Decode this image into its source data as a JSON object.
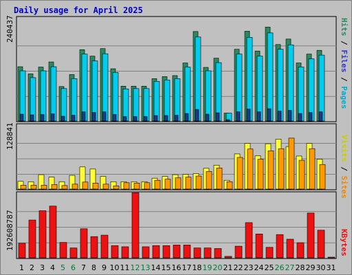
{
  "chart_data": {
    "type": "bar",
    "title": "Daily usage for April 2025",
    "categories": [
      "1",
      "2",
      "3",
      "4",
      "5",
      "6",
      "7",
      "8",
      "9",
      "10",
      "11",
      "12",
      "13",
      "14",
      "15",
      "16",
      "17",
      "18",
      "19",
      "20",
      "21",
      "22",
      "23",
      "24",
      "25",
      "26",
      "27",
      "28",
      "29",
      "30",
      "31"
    ],
    "weekend_categories": [
      "5",
      "6",
      "12",
      "13",
      "19",
      "20",
      "26",
      "27"
    ],
    "colors": {
      "hits": "#2a8a5e",
      "files": "#00ccee",
      "pages": "#1a3a8a",
      "visits": "#ffff33",
      "sites": "#ff9900",
      "kbytes": "#ee1111",
      "weekend_label": "#007a3a",
      "title": "#0000cc"
    },
    "panels": [
      {
        "name": "hits-files-pages",
        "y_tick_label": "240437",
        "y_tick_value": 240437,
        "ylim": [
          0,
          300000
        ],
        "right_labels": [
          {
            "text": "Pages",
            "color": "#00aacc"
          },
          {
            "text": "Files",
            "color": "#3333cc"
          },
          {
            "text": "Hits",
            "color": "#2a8a5e"
          }
        ],
        "series": [
          {
            "name": "Hits",
            "key": "hits",
            "values": [
              159000,
              138000,
              158000,
              173000,
              101000,
              136000,
              209000,
              190000,
              212000,
              153000,
              102000,
              102000,
              102000,
              124000,
              130000,
              133000,
              170000,
              262000,
              157000,
              184000,
              23000,
              210000,
              263000,
              205000,
              275000,
              224000,
              240000,
              170000,
              196000,
              207000,
              0
            ]
          },
          {
            "name": "Files",
            "key": "files",
            "values": [
              147000,
              127000,
              147000,
              159000,
              95000,
              124000,
              196000,
              176000,
              197000,
              142000,
              94000,
              95000,
              95000,
              116000,
              120000,
              124000,
              158000,
              246000,
              147000,
              171000,
              23000,
              196000,
              245000,
              190000,
              258000,
              210000,
              223000,
              158000,
              182000,
              193000,
              0
            ]
          },
          {
            "name": "Pages",
            "key": "pages",
            "values": [
              20000,
              18000,
              19000,
              21000,
              14000,
              17000,
              27000,
              25000,
              27000,
              19000,
              13000,
              13000,
              13000,
              16000,
              16000,
              17000,
              22000,
              34000,
              20000,
              24000,
              4000,
              27000,
              35000,
              27000,
              36000,
              29000,
              31000,
              22000,
              25000,
              27000,
              0
            ]
          }
        ]
      },
      {
        "name": "visits-sites",
        "y_tick_label": "128841",
        "y_tick_value": 128841,
        "ylim": [
          0,
          180000
        ],
        "right_labels": [
          {
            "text": "Sites",
            "color": "#ee8800"
          },
          {
            "text": "Visits",
            "color": "#cccc00"
          }
        ],
        "series": [
          {
            "name": "Visits",
            "key": "visits",
            "values": [
              22000,
              21000,
              41000,
              34000,
              21000,
              39000,
              63000,
              57000,
              36000,
              21000,
              21000,
              21000,
              21000,
              31000,
              36000,
              41000,
              42000,
              44000,
              59000,
              68000,
              25000,
              100000,
              130000,
              95000,
              129000,
              142000,
              121000,
              94000,
              130000,
              85000,
              0
            ]
          },
          {
            "name": "Sites",
            "key": "sites",
            "values": [
              11000,
              11000,
              11000,
              13000,
              10000,
              14000,
              20000,
              17000,
              14000,
              9000,
              18000,
              17000,
              18000,
              25000,
              28000,
              32000,
              34000,
              37000,
              50000,
              60000,
              21000,
              90000,
              114000,
              85000,
              109000,
              115000,
              145000,
              82000,
              115000,
              70000,
              0
            ]
          }
        ]
      },
      {
        "name": "kbytes",
        "y_tick_label": "19260878 7",
        "y_tick_value": 192608787,
        "ylim": [
          0,
          220000000
        ],
        "right_labels": [
          {
            "text": "KBytes",
            "color": "#ee1111"
          }
        ],
        "series": [
          {
            "name": "KBytes",
            "key": "kbytes",
            "values": [
              50000000,
              130000000,
              162000000,
              178000000,
              53000000,
              34000000,
              100000000,
              73000000,
              78000000,
              42000000,
              38000000,
              224000000,
              38000000,
              42000000,
              42000000,
              44000000,
              44000000,
              34000000,
              34000000,
              32000000,
              5000000,
              40000000,
              121000000,
              82000000,
              36000000,
              80000000,
              64000000,
              52000000,
              154000000,
              95000000,
              0
            ]
          }
        ]
      }
    ]
  }
}
